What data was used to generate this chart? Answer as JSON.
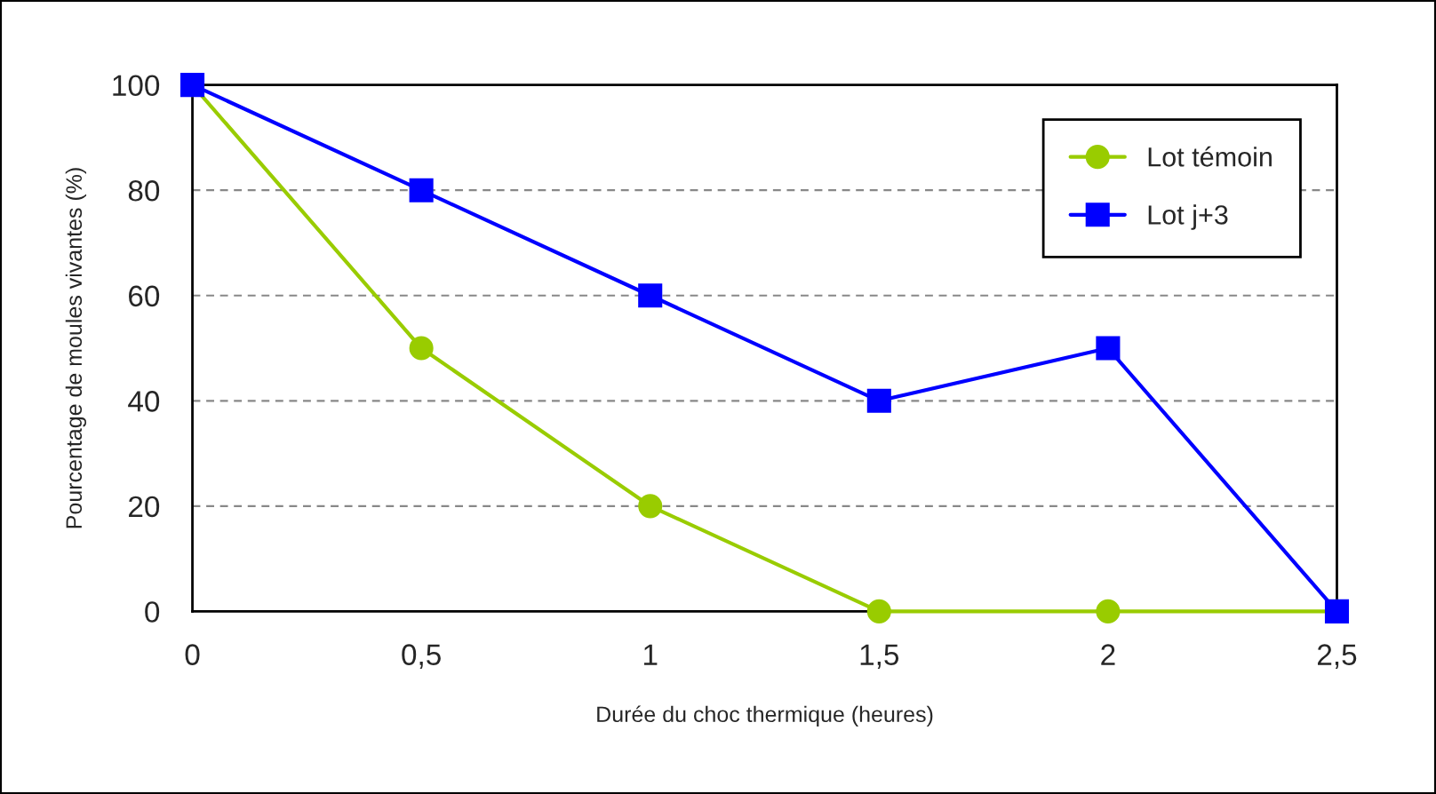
{
  "chart_data": {
    "type": "line",
    "xlabel": "Durée du choc thermique (heures)",
    "ylabel": "Pourcentage de moules vivantes (%)",
    "x": [
      0,
      0.5,
      1,
      1.5,
      2,
      2.5
    ],
    "series": [
      {
        "name": "Lot témoin",
        "color": "#99cc00",
        "marker": "circle",
        "values": [
          100,
          50,
          20,
          0,
          0,
          0
        ]
      },
      {
        "name": "Lot j+3",
        "color": "#0000ff",
        "marker": "square",
        "values": [
          100,
          80,
          60,
          40,
          50,
          0
        ]
      }
    ],
    "xlim": [
      0,
      2.5
    ],
    "xticks": [
      0,
      {
        "value": 0.5,
        "label": "0,5"
      },
      1,
      {
        "value": 1.5,
        "label": "1,5"
      },
      2,
      {
        "value": 2.5,
        "label": "2,5"
      }
    ],
    "ylim": [
      0,
      100
    ],
    "yticks": [
      0,
      20,
      40,
      60,
      80,
      100
    ],
    "grid": "y",
    "legend": "top right"
  }
}
